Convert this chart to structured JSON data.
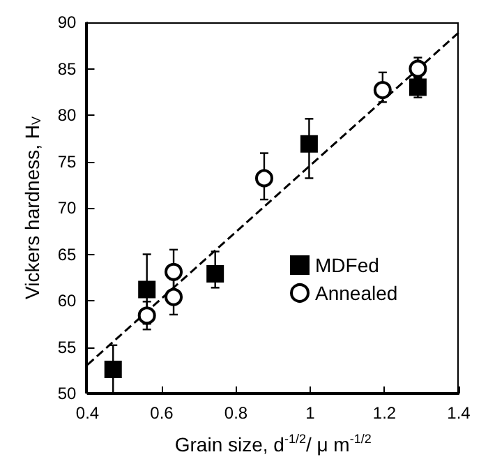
{
  "chart_data": {
    "type": "scatter",
    "xlabel": "Grain size, d$^{-1/2}$/ μ m$^{-1/2}$",
    "ylabel": "Vickers hardness, H$_{V}$",
    "xlim": [
      0.4,
      1.4
    ],
    "xticks": [
      0.4,
      0.6,
      0.8,
      1,
      1.2,
      1.4
    ],
    "ylim": [
      50,
      90
    ],
    "yticks": [
      50,
      55,
      60,
      65,
      70,
      75,
      80,
      85,
      90
    ],
    "grid": false,
    "legend": "right",
    "series": [
      {
        "name": "MDFed",
        "color": "#000000",
        "marker": "square",
        "x": [
          0.469,
          0.56,
          0.744,
          0.997,
          1.29
        ],
        "values": [
          52.6,
          61.2,
          62.9,
          76.9,
          83.0
        ],
        "errors": [
          [
            50,
            55.2
          ],
          [
            57.5,
            65.0
          ],
          [
            61.4,
            65.3
          ],
          [
            73.2,
            79.6
          ],
          [
            81.9,
            84.1
          ]
        ]
      },
      {
        "name": "Annealed",
        "color": "#000000",
        "marker": "circle",
        "x": [
          0.56,
          0.632,
          0.632,
          0.876,
          1.195,
          1.29
        ],
        "values": [
          58.4,
          60.4,
          63.1,
          73.2,
          82.7,
          85.0
        ],
        "errors": [
          [
            56.9,
            59.9
          ],
          [
            58.5,
            62.3
          ],
          [
            60.7,
            65.5
          ],
          [
            70.9,
            75.9
          ],
          [
            81.4,
            84.6
          ],
          [
            84.0,
            86.2
          ]
        ]
      },
      {
        "type": "line",
        "line_style": "dashed",
        "marker": "none",
        "color": "#000000",
        "x": [
          0.4,
          1.4
        ],
        "values": [
          53.1,
          88.9
        ]
      }
    ]
  }
}
